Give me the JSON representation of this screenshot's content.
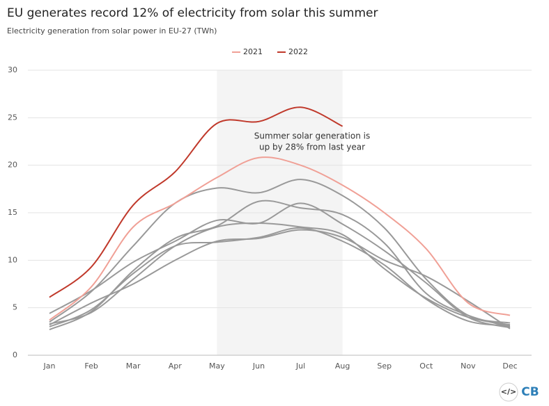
{
  "chart_data": {
    "type": "line",
    "title": "EU generates record 12% of electricity from solar this summer",
    "subtitle": "Electricity generation from solar power in EU-27 (TWh)",
    "categories": [
      "Jan",
      "Feb",
      "Mar",
      "Apr",
      "May",
      "Jun",
      "Jul",
      "Aug",
      "Sep",
      "Oct",
      "Nov",
      "Dec"
    ],
    "series": [
      {
        "color": "#999999",
        "values": [
          3.5,
          6.7,
          11.5,
          16.0,
          17.6,
          17.1,
          18.5,
          16.8,
          13.4,
          8.0,
          4.2,
          3.4
        ]
      },
      {
        "color": "#999999",
        "values": [
          4.4,
          6.8,
          9.8,
          12.0,
          14.2,
          13.9,
          16.0,
          13.8,
          11.0,
          7.6,
          4.0,
          2.9
        ]
      },
      {
        "color": "#999999",
        "values": [
          2.7,
          4.6,
          8.9,
          12.3,
          13.6,
          16.2,
          15.5,
          14.8,
          11.8,
          6.5,
          4.2,
          3.0
        ]
      },
      {
        "color": "#999999",
        "values": [
          3.2,
          5.5,
          7.5,
          10.0,
          12.0,
          12.3,
          13.2,
          12.4,
          10.0,
          8.3,
          5.7,
          2.8
        ]
      },
      {
        "color": "#999999",
        "values": [
          3.3,
          4.5,
          8.0,
          11.5,
          13.5,
          13.9,
          13.5,
          12.7,
          9.1,
          6.0,
          4.0,
          3.2
        ]
      },
      {
        "color": "#999999",
        "values": [
          3.0,
          4.8,
          8.6,
          11.5,
          11.9,
          12.4,
          13.4,
          12.0,
          9.5,
          5.9,
          3.6,
          3.1
        ]
      },
      {
        "name": "2021",
        "color": "#f0a096",
        "values": [
          3.7,
          7.2,
          13.5,
          16.0,
          18.7,
          20.8,
          20.0,
          17.9,
          15.0,
          11.2,
          5.5,
          4.2
        ]
      },
      {
        "name": "2022",
        "color": "#c0392b",
        "values": [
          6.1,
          9.3,
          15.8,
          19.3,
          24.4,
          24.6,
          26.1,
          24.1,
          null,
          null,
          null,
          null
        ]
      }
    ],
    "ylim": [
      0,
      30
    ],
    "yticks": [
      0,
      5,
      10,
      15,
      20,
      25,
      30
    ],
    "grid": true,
    "legend": "top",
    "highlight": {
      "from": "May",
      "to": "Aug",
      "color": "#f4f4f4"
    },
    "annotation": [
      "Summer solar generation is",
      "up by 28% from last year"
    ]
  },
  "footer": {
    "embed": "</>",
    "logo": "CB"
  }
}
